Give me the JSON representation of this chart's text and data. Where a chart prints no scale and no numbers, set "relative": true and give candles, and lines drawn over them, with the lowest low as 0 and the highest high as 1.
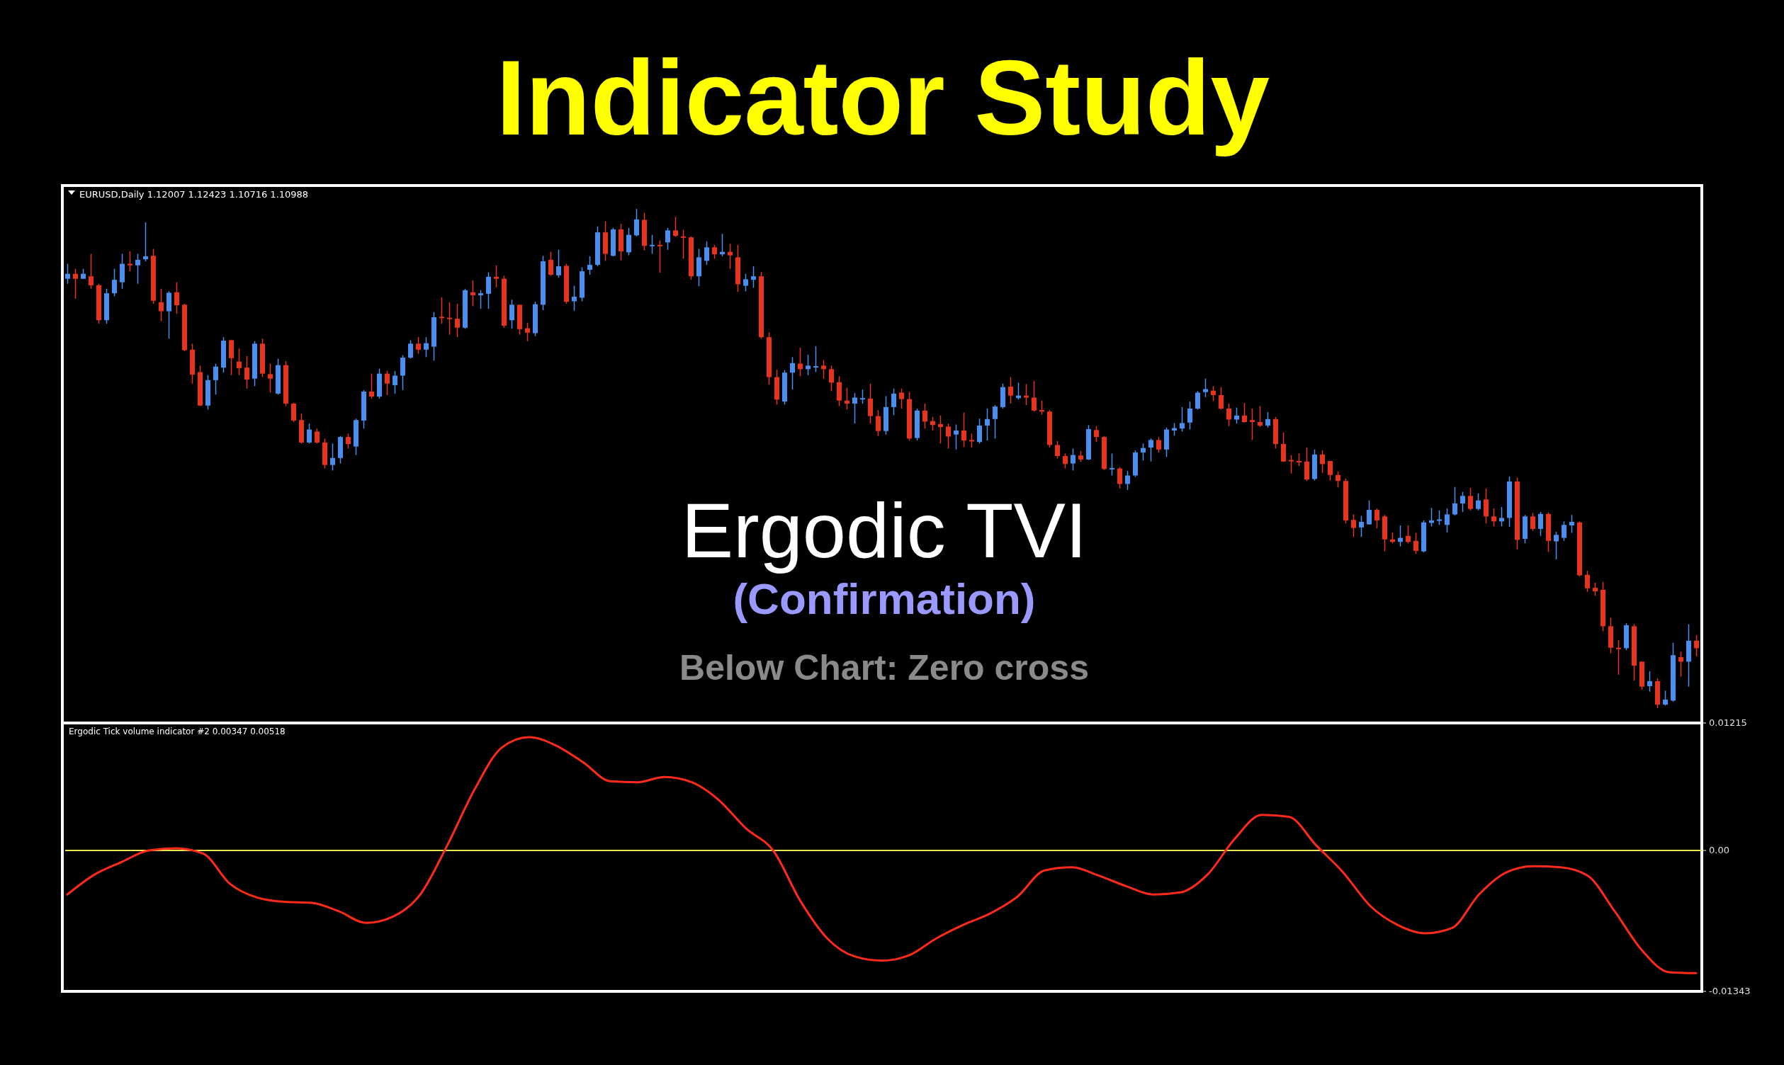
{
  "chart_data": [
    {
      "type": "candlestick",
      "title": "Indicator Study",
      "subtitle": "EURUSD,Daily 1.12007 1.12423 1.10716 1.10988",
      "annotations": [
        "Ergodic TVI",
        "(Confirmation)",
        "Below Chart: Zero cross"
      ],
      "relative": true,
      "colors": [
        "#4a8ff0",
        "#e8331f",
        "#4a8ff0",
        "#e8331f",
        "#e8331f",
        "#4a8ff0",
        "#4a8ff0",
        "#4a8ff0",
        "#e8331f",
        "#4a8ff0",
        "#4a8ff0",
        "#e8331f",
        "#e8331f",
        "#4a8ff0",
        "#e8331f",
        "#e8331f",
        "#e8331f",
        "#e8331f",
        "#4a8ff0",
        "#4a8ff0",
        "#4a8ff0",
        "#e8331f",
        "#e8331f",
        "#e8331f",
        "#4a8ff0",
        "#e8331f",
        "#e8331f",
        "#4a8ff0",
        "#e8331f",
        "#e8331f",
        "#e8331f",
        "#4a8ff0",
        "#e8331f",
        "#e8331f",
        "#4a8ff0",
        "#4a8ff0",
        "#e8331f",
        "#4a8ff0",
        "#4a8ff0",
        "#e8331f",
        "#4a8ff0",
        "#e8331f",
        "#4a8ff0",
        "#4a8ff0",
        "#4a8ff0",
        "#e8331f",
        "#4a8ff0",
        "#4a8ff0",
        "#e8331f",
        "#e8331f",
        "#e8331f",
        "#4a8ff0",
        "#e8331f",
        "#4a8ff0",
        "#4a8ff0",
        "#e8331f",
        "#e8331f",
        "#4a8ff0",
        "#e8331f",
        "#e8331f",
        "#4a8ff0",
        "#4a8ff0",
        "#e8331f",
        "#4a8ff0",
        "#e8331f",
        "#4a8ff0",
        "#4a8ff0",
        "#4a8ff0",
        "#4a8ff0",
        "#e8331f",
        "#4a8ff0",
        "#e8331f",
        "#4a8ff0",
        "#4a8ff0",
        "#e8331f",
        "#4a8ff0",
        "#e8331f",
        "#4a8ff0",
        "#e8331f",
        "#e8331f",
        "#e8331f",
        "#4a8ff0",
        "#4a8ff0",
        "#e8331f",
        "#4a8ff0",
        "#e8331f",
        "#e8331f",
        "#4a8ff0",
        "#4a8ff0",
        "#e8331f",
        "#e8331f",
        "#e8331f",
        "#4a8ff0",
        "#4a8ff0",
        "#e8331f",
        "#4a8ff0",
        "#4a8ff0",
        "#e8331f",
        "#e8331f",
        "#e8331f",
        "#e8331f",
        "#4a8ff0",
        "#4a8ff0",
        "#e8331f",
        "#e8331f",
        "#4a8ff0",
        "#4a8ff0",
        "#e8331f",
        "#e8331f",
        "#4a8ff0",
        "#e8331f",
        "#e8331f",
        "#e8331f",
        "#e8331f",
        "#4a8ff0",
        "#e8331f",
        "#e8331f",
        "#4a8ff0",
        "#4a8ff0",
        "#4a8ff0",
        "#4a8ff0",
        "#e8331f",
        "#4a8ff0",
        "#e8331f",
        "#e8331f",
        "#e8331f",
        "#e8331f",
        "#e8331f",
        "#e8331f",
        "#4a8ff0",
        "#e8331f",
        "#4a8ff0",
        "#e8331f",
        "#e8331f",
        "#4a8ff0",
        "#e8331f",
        "#4a8ff0",
        "#4a8ff0",
        "#4a8ff0",
        "#4a8ff0",
        "#e8331f",
        "#4a8ff0",
        "#4a8ff0",
        "#4a8ff0",
        "#4a8ff0",
        "#4a8ff0",
        "#4a8ff0",
        "#e8331f",
        "#e8331f",
        "#e8331f",
        "#4a8ff0",
        "#e8331f",
        "#e8331f",
        "#e8331f",
        "#4a8ff0",
        "#e8331f",
        "#e8331f",
        "#e8331f",
        "#e8331f",
        "#e8331f",
        "#4a8ff0",
        "#e8331f",
        "#e8331f",
        "#e8331f",
        "#e8331f",
        "#e8331f",
        "#4a8ff0",
        "#4a8ff0",
        "#e8331f",
        "#e8331f",
        "#e8331f",
        "#4a8ff0",
        "#e8331f",
        "#e8331f",
        "#4a8ff0",
        "#4a8ff0",
        "#4a8ff0",
        "#4a8ff0",
        "#4a8ff0",
        "#4a8ff0",
        "#e8331f",
        "#4a8ff0",
        "#e8331f",
        "#e8331f",
        "#4a8ff0",
        "#4a8ff0",
        "#e8331f",
        "#4a8ff0",
        "#e8331f",
        "#4a8ff0",
        "#e8331f",
        "#4a8ff0",
        "#4a8ff0",
        "#4a8ff0",
        "#e8331f",
        "#e8331f",
        "#e8331f",
        "#e8331f",
        "#e8331f",
        "#e8331f",
        "#4a8ff0",
        "#e8331f",
        "#e8331f",
        "#4a8ff0",
        "#e8331f",
        "#4a8ff0",
        "#4a8ff0",
        "#e8331f",
        "#4a8ff0",
        "#e8331f"
      ],
      "categories": [
        null,
        null,
        null,
        null,
        null,
        null,
        null,
        null,
        null,
        null,
        null,
        null,
        null,
        null,
        null,
        null,
        null,
        null,
        null,
        null,
        null,
        null,
        null,
        null,
        null,
        null,
        null,
        null,
        null,
        null,
        null,
        null,
        null,
        null,
        null,
        null,
        null,
        null,
        null,
        null,
        null,
        null,
        null,
        null,
        null,
        null,
        null,
        null,
        null,
        null,
        null,
        null,
        null,
        null,
        null,
        null,
        null,
        null,
        null,
        null,
        null,
        null,
        null,
        null,
        null,
        null,
        null,
        null,
        null,
        null,
        null,
        null,
        null,
        null,
        null,
        null,
        null,
        null,
        null,
        null,
        null,
        null,
        null,
        null,
        null,
        null,
        null,
        null,
        null,
        null,
        null,
        null,
        null,
        null,
        null,
        null,
        null,
        null,
        null,
        null,
        null,
        null,
        null,
        null,
        null,
        null,
        null,
        null,
        null,
        null,
        null,
        null,
        null,
        null,
        null,
        null,
        null,
        null,
        null,
        null,
        null,
        null,
        null,
        null,
        null,
        null,
        null,
        null,
        null,
        null,
        null,
        null,
        null,
        null,
        null,
        null,
        null,
        null,
        null,
        null,
        null,
        null,
        null,
        null,
        null,
        null,
        null,
        null,
        null,
        null,
        null,
        null,
        null,
        null,
        null,
        null,
        null,
        null,
        null,
        null,
        null,
        null,
        null,
        null,
        null,
        null,
        null,
        null,
        null,
        null,
        null,
        null,
        null,
        null,
        null,
        null,
        null,
        null,
        null,
        null,
        null,
        null,
        null,
        null,
        null,
        null,
        null,
        null,
        null,
        null,
        null,
        null,
        null,
        null,
        null,
        null,
        null,
        null,
        null,
        null,
        null,
        null,
        null,
        null,
        null,
        null,
        null,
        null,
        null,
        null
      ],
      "ohlc": [
        [
          0.86,
          0.89,
          0.85,
          0.87
        ],
        [
          0.87,
          0.88,
          0.82,
          0.86
        ],
        [
          0.86,
          0.88,
          0.86,
          0.87
        ],
        [
          0.865,
          0.91,
          0.84,
          0.847
        ],
        [
          0.847,
          0.85,
          0.77,
          0.777
        ],
        [
          0.777,
          0.84,
          0.77,
          0.831
        ],
        [
          0.831,
          0.88,
          0.825,
          0.858
        ],
        [
          0.853,
          0.91,
          0.84,
          0.89
        ],
        [
          0.89,
          0.915,
          0.875,
          0.887
        ],
        [
          0.887,
          0.91,
          0.85,
          0.898
        ],
        [
          0.899,
          0.973,
          0.895,
          0.905
        ],
        [
          0.906,
          0.92,
          0.81,
          0.816
        ],
        [
          0.813,
          0.84,
          0.775,
          0.795
        ],
        [
          0.795,
          0.835,
          0.74,
          0.832
        ],
        [
          0.833,
          0.853,
          0.79,
          0.807
        ],
        [
          0.808,
          0.81,
          0.715,
          0.717
        ],
        [
          0.718,
          0.73,
          0.65,
          0.668
        ],
        [
          0.673,
          0.686,
          0.605,
          0.606
        ],
        [
          0.606,
          0.667,
          0.598,
          0.657
        ],
        [
          0.657,
          0.69,
          0.628,
          0.684
        ],
        [
          0.682,
          0.743,
          0.672,
          0.736
        ],
        [
          0.737,
          0.738,
          0.667,
          0.701
        ],
        [
          0.694,
          0.72,
          0.667,
          0.681
        ],
        [
          0.682,
          0.705,
          0.64,
          0.658
        ],
        [
          0.66,
          0.735,
          0.645,
          0.73
        ],
        [
          0.73,
          0.74,
          0.663,
          0.67
        ],
        [
          0.669,
          0.69,
          0.632,
          0.66
        ],
        [
          0.63,
          0.7,
          0.628,
          0.687
        ],
        [
          0.687,
          0.695,
          0.605,
          0.61
        ],
        [
          0.61,
          0.612,
          0.573,
          0.576
        ],
        [
          0.577,
          0.59,
          0.53,
          0.532
        ],
        [
          0.532,
          0.57,
          0.53,
          0.558
        ],
        [
          0.554,
          0.56,
          0.53,
          0.532
        ],
        [
          0.532,
          0.54,
          0.48,
          0.487
        ],
        [
          0.487,
          0.53,
          0.476,
          0.501
        ],
        [
          0.501,
          0.545,
          0.49,
          0.543
        ],
        [
          0.543,
          0.55,
          0.52,
          0.529
        ],
        [
          0.524,
          0.58,
          0.507,
          0.577
        ],
        [
          0.576,
          0.637,
          0.56,
          0.634
        ],
        [
          0.634,
          0.67,
          0.62,
          0.624
        ],
        [
          0.624,
          0.68,
          0.62,
          0.67
        ],
        [
          0.67,
          0.676,
          0.627,
          0.65
        ],
        [
          0.647,
          0.675,
          0.63,
          0.666
        ],
        [
          0.666,
          0.707,
          0.637,
          0.702
        ],
        [
          0.702,
          0.737,
          0.7,
          0.73
        ],
        [
          0.73,
          0.743,
          0.71,
          0.718
        ],
        [
          0.718,
          0.743,
          0.703,
          0.731
        ],
        [
          0.724,
          0.793,
          0.696,
          0.783
        ],
        [
          0.784,
          0.823,
          0.77,
          0.782
        ],
        [
          0.782,
          0.813,
          0.748,
          0.78
        ],
        [
          0.78,
          0.81,
          0.743,
          0.762
        ],
        [
          0.762,
          0.84,
          0.76,
          0.837
        ],
        [
          0.833,
          0.857,
          0.805,
          0.827
        ],
        [
          0.827,
          0.837,
          0.8,
          0.831
        ],
        [
          0.83,
          0.873,
          0.8,
          0.864
        ],
        [
          0.864,
          0.887,
          0.843,
          0.86
        ],
        [
          0.86,
          0.866,
          0.762,
          0.766
        ],
        [
          0.777,
          0.818,
          0.76,
          0.808
        ],
        [
          0.808,
          0.808,
          0.748,
          0.759
        ],
        [
          0.761,
          0.772,
          0.735,
          0.752
        ],
        [
          0.751,
          0.814,
          0.745,
          0.809
        ],
        [
          0.808,
          0.906,
          0.797,
          0.895
        ],
        [
          0.898,
          0.914,
          0.866,
          0.868
        ],
        [
          0.867,
          0.918,
          0.862,
          0.885
        ],
        [
          0.886,
          0.89,
          0.81,
          0.814
        ],
        [
          0.815,
          0.846,
          0.796,
          0.824
        ],
        [
          0.822,
          0.883,
          0.815,
          0.875
        ],
        [
          0.878,
          0.905,
          0.868,
          0.888
        ],
        [
          0.888,
          0.965,
          0.885,
          0.953
        ],
        [
          0.953,
          0.975,
          0.896,
          0.91
        ],
        [
          0.906,
          0.962,
          0.905,
          0.959
        ],
        [
          0.959,
          0.97,
          0.897,
          0.915
        ],
        [
          0.913,
          0.962,
          0.907,
          0.948
        ],
        [
          0.947,
          1,
          0.945,
          0.979
        ],
        [
          0.978,
          0.992,
          0.917,
          0.926
        ],
        [
          0.926,
          0.948,
          0.91,
          0.928
        ],
        [
          0.928,
          0.937,
          0.872,
          0.925
        ],
        [
          0.933,
          0.962,
          0.918,
          0.957
        ],
        [
          0.957,
          0.984,
          0.944,
          0.946
        ],
        [
          0.945,
          0.958,
          0.9,
          0.944
        ],
        [
          0.943,
          0.945,
          0.858,
          0.865
        ],
        [
          0.865,
          0.92,
          0.845,
          0.903
        ],
        [
          0.896,
          0.935,
          0.888,
          0.923
        ],
        [
          0.923,
          0.928,
          0.9,
          0.909
        ],
        [
          0.909,
          0.95,
          0.905,
          0.914
        ],
        [
          0.914,
          0.93,
          0.88,
          0.907
        ],
        [
          0.903,
          0.928,
          0.834,
          0.849
        ],
        [
          0.846,
          0.87,
          0.835,
          0.859
        ],
        [
          0.858,
          0.885,
          0.842,
          0.865
        ],
        [
          0.865,
          0.874,
          0.74,
          0.743
        ],
        [
          0.743,
          0.753,
          0.648,
          0.663
        ],
        [
          0.663,
          0.678,
          0.608,
          0.618
        ],
        [
          0.614,
          0.677,
          0.608,
          0.672
        ],
        [
          0.672,
          0.703,
          0.638,
          0.691
        ],
        [
          0.69,
          0.722,
          0.665,
          0.679
        ],
        [
          0.679,
          0.708,
          0.667,
          0.686
        ],
        [
          0.684,
          0.725,
          0.673,
          0.685
        ],
        [
          0.686,
          0.697,
          0.66,
          0.679
        ],
        [
          0.679,
          0.686,
          0.635,
          0.652
        ],
        [
          0.653,
          0.665,
          0.605,
          0.616
        ],
        [
          0.616,
          0.642,
          0.598,
          0.61
        ],
        [
          0.61,
          0.631,
          0.57,
          0.622
        ],
        [
          0.619,
          0.638,
          0.61,
          0.621
        ],
        [
          0.62,
          0.65,
          0.57,
          0.585
        ],
        [
          0.585,
          0.597,
          0.545,
          0.555
        ],
        [
          0.555,
          0.625,
          0.548,
          0.603
        ],
        [
          0.603,
          0.64,
          0.587,
          0.63
        ],
        [
          0.632,
          0.64,
          0.6,
          0.619
        ],
        [
          0.619,
          0.633,
          0.536,
          0.54
        ],
        [
          0.541,
          0.6,
          0.536,
          0.596
        ],
        [
          0.596,
          0.61,
          0.56,
          0.574
        ],
        [
          0.575,
          0.583,
          0.556,
          0.567
        ],
        [
          0.569,
          0.586,
          0.53,
          0.563
        ],
        [
          0.564,
          0.57,
          0.52,
          0.544
        ],
        [
          0.548,
          0.568,
          0.518,
          0.556
        ],
        [
          0.556,
          0.592,
          0.523,
          0.536
        ],
        [
          0.537,
          0.55,
          0.522,
          0.536
        ],
        [
          0.533,
          0.58,
          0.53,
          0.566
        ],
        [
          0.566,
          0.6,
          0.536,
          0.579
        ],
        [
          0.579,
          0.607,
          0.54,
          0.604
        ],
        [
          0.603,
          0.65,
          0.6,
          0.643
        ],
        [
          0.644,
          0.663,
          0.61,
          0.626
        ],
        [
          0.621,
          0.652,
          0.618,
          0.626
        ],
        [
          0.626,
          0.649,
          0.607,
          0.622
        ],
        [
          0.622,
          0.655,
          0.594,
          0.596
        ],
        [
          0.597,
          0.616,
          0.588,
          0.594
        ],
        [
          0.594,
          0.597,
          0.522,
          0.527
        ],
        [
          0.527,
          0.535,
          0.5,
          0.505
        ],
        [
          0.505,
          0.51,
          0.48,
          0.489
        ],
        [
          0.49,
          0.52,
          0.476,
          0.507
        ],
        [
          0.506,
          0.515,
          0.493,
          0.498
        ],
        [
          0.498,
          0.567,
          0.497,
          0.559
        ],
        [
          0.557,
          0.565,
          0.533,
          0.543
        ],
        [
          0.543,
          0.545,
          0.477,
          0.479
        ],
        [
          0.48,
          0.51,
          0.466,
          0.481
        ],
        [
          0.48,
          0.483,
          0.44,
          0.449
        ],
        [
          0.449,
          0.475,
          0.437,
          0.466
        ],
        [
          0.466,
          0.516,
          0.463,
          0.512
        ],
        [
          0.512,
          0.53,
          0.496,
          0.521
        ],
        [
          0.522,
          0.54,
          0.494,
          0.537
        ],
        [
          0.537,
          0.543,
          0.512,
          0.518
        ],
        [
          0.518,
          0.562,
          0.503,
          0.558
        ],
        [
          0.556,
          0.571,
          0.546,
          0.561
        ],
        [
          0.56,
          0.603,
          0.554,
          0.571
        ],
        [
          0.572,
          0.614,
          0.558,
          0.6
        ],
        [
          0.6,
          0.635,
          0.598,
          0.632
        ],
        [
          0.633,
          0.66,
          0.623,
          0.639
        ],
        [
          0.636,
          0.645,
          0.615,
          0.627
        ],
        [
          0.627,
          0.643,
          0.598,
          0.6
        ],
        [
          0.6,
          0.61,
          0.565,
          0.578
        ],
        [
          0.578,
          0.602,
          0.57,
          0.586
        ],
        [
          0.586,
          0.611,
          0.572,
          0.573
        ],
        [
          0.577,
          0.6,
          0.537,
          0.573
        ],
        [
          0.573,
          0.605,
          0.563,
          0.566
        ],
        [
          0.566,
          0.593,
          0.562,
          0.579
        ],
        [
          0.579,
          0.583,
          0.52,
          0.529
        ],
        [
          0.529,
          0.552,
          0.493,
          0.494
        ],
        [
          0.497,
          0.507,
          0.47,
          0.495
        ],
        [
          0.495,
          0.51,
          0.485,
          0.493
        ],
        [
          0.494,
          0.522,
          0.455,
          0.458
        ],
        [
          0.459,
          0.518,
          0.456,
          0.508
        ],
        [
          0.508,
          0.516,
          0.471,
          0.489
        ],
        [
          0.495,
          0.495,
          0.456,
          0.467
        ],
        [
          0.467,
          0.474,
          0.442,
          0.455
        ],
        [
          0.455,
          0.46,
          0.37,
          0.376
        ],
        [
          0.377,
          0.388,
          0.343,
          0.361
        ],
        [
          0.362,
          0.385,
          0.343,
          0.373
        ],
        [
          0.368,
          0.416,
          0.368,
          0.397
        ],
        [
          0.397,
          0.4,
          0.36,
          0.376
        ],
        [
          0.384,
          0.387,
          0.314,
          0.338
        ],
        [
          0.338,
          0.352,
          0.33,
          0.333
        ],
        [
          0.333,
          0.366,
          0.324,
          0.341
        ],
        [
          0.345,
          0.366,
          0.33,
          0.333
        ],
        [
          0.335,
          0.351,
          0.309,
          0.315
        ],
        [
          0.314,
          0.376,
          0.312,
          0.372
        ],
        [
          0.371,
          0.401,
          0.364,
          0.376
        ],
        [
          0.375,
          0.396,
          0.367,
          0.378
        ],
        [
          0.367,
          0.4,
          0.352,
          0.388
        ],
        [
          0.388,
          0.443,
          0.386,
          0.41
        ],
        [
          0.41,
          0.433,
          0.393,
          0.425
        ],
        [
          0.425,
          0.441,
          0.396,
          0.399
        ],
        [
          0.399,
          0.43,
          0.396,
          0.416
        ],
        [
          0.418,
          0.44,
          0.37,
          0.384
        ],
        [
          0.384,
          0.4,
          0.364,
          0.374
        ],
        [
          0.374,
          0.403,
          0.364,
          0.381
        ],
        [
          0.381,
          0.464,
          0.363,
          0.454
        ],
        [
          0.454,
          0.462,
          0.318,
          0.337
        ],
        [
          0.339,
          0.387,
          0.33,
          0.384
        ],
        [
          0.384,
          0.391,
          0.355,
          0.359
        ],
        [
          0.359,
          0.393,
          0.345,
          0.389
        ],
        [
          0.389,
          0.392,
          0.313,
          0.335
        ],
        [
          0.334,
          0.353,
          0.298,
          0.347
        ],
        [
          0.341,
          0.374,
          0.335,
          0.367
        ],
        [
          0.366,
          0.387,
          0.351,
          0.373
        ],
        [
          0.372,
          0.374,
          0.264,
          0.266
        ],
        [
          0.267,
          0.275,
          0.233,
          0.24
        ],
        [
          0.241,
          0.251,
          0.225,
          0.234
        ],
        [
          0.237,
          0.253,
          0.154,
          0.164
        ],
        [
          0.164,
          0.181,
          0.11,
          0.121
        ],
        [
          0.121,
          0.136,
          0.067,
          0.12
        ],
        [
          0.12,
          0.17,
          0.116,
          0.166
        ],
        [
          0.164,
          0.168,
          0.055,
          0.085
        ],
        [
          0.093,
          0.094,
          0.037,
          0.043
        ],
        [
          0.044,
          0.074,
          0.033,
          0.054
        ],
        [
          0.054,
          0.06,
          0,
          0.007
        ],
        [
          0.007,
          0.035,
          0.005,
          0.017
        ],
        [
          0.015,
          0.131,
          0.013,
          0.106
        ],
        [
          0.102,
          0.113,
          0.063,
          0.093
        ],
        [
          0.093,
          0.168,
          0.043,
          0.135
        ],
        [
          0.135,
          0.146,
          0.104,
          0.12
        ]
      ]
    },
    {
      "type": "line",
      "title": "Ergodic Tick volume indicator #2 0.00347 0.00518",
      "ylim": [
        -0.01343,
        0.01215
      ],
      "yticks": [
        0.01215,
        {
          "value": 0,
          "label": "0.00"
        },
        -0.01343
      ],
      "tick_labels": "y",
      "grid": false,
      "ref_lines": [
        {
          "axis": "y",
          "value": 0,
          "color": "#e6e650"
        }
      ],
      "categories": [
        null,
        null,
        null,
        null,
        null,
        null,
        null,
        null,
        null,
        null,
        null,
        null,
        null,
        null,
        null,
        null,
        null,
        null,
        null,
        null,
        null,
        null,
        null,
        null,
        null,
        null,
        null,
        null,
        null,
        null,
        null,
        null,
        null,
        null,
        null,
        null,
        null,
        null,
        null,
        null,
        null,
        null,
        null,
        null,
        null,
        null,
        null,
        null,
        null,
        null,
        null,
        null,
        null,
        null,
        null,
        null,
        null,
        null,
        null,
        null,
        null
      ],
      "series": [
        {
          "color": "#ff2a1a",
          "values": [
            -0.0042,
            -0.0023,
            -0.0011,
            0,
            0.0002,
            -0.0003,
            -0.0032,
            -0.0045,
            -0.0049,
            -0.005,
            -0.0058,
            -0.0069,
            -0.0063,
            -0.0042,
            0.0005,
            0.0058,
            0.0098,
            0.0108,
            0.01,
            0.0084,
            0.0066,
            0.0065,
            0.007,
            0.0065,
            0.0048,
            0.0021,
            0,
            -0.0048,
            -0.0084,
            -0.0101,
            -0.0105,
            -0.01,
            -0.0084,
            -0.0071,
            -0.006,
            -0.0044,
            -0.0019,
            -0.0016,
            -0.0024,
            -0.0034,
            -0.0042,
            -0.004,
            -0.0023,
            0.0011,
            0.0034,
            0.0032,
            0.0005,
            -0.0021,
            -0.0053,
            -0.0071,
            -0.0079,
            -0.0074,
            -0.0042,
            -0.0021,
            -0.0015,
            -0.0016,
            -0.0024,
            -0.0058,
            -0.0095,
            -0.0116,
            -0.0117
          ]
        }
      ]
    }
  ]
}
